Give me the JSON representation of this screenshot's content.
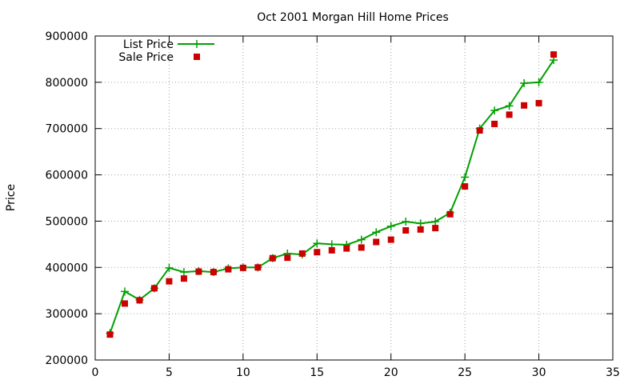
{
  "chart_data": {
    "type": "line",
    "title": "Oct 2001 Morgan Hill Home Prices",
    "xlabel": "",
    "ylabel": "Price",
    "xlim": [
      0,
      35
    ],
    "ylim": [
      200000,
      900000
    ],
    "xticks": [
      0,
      5,
      10,
      15,
      20,
      25,
      30,
      35
    ],
    "yticks": [
      200000,
      300000,
      400000,
      500000,
      600000,
      700000,
      800000,
      900000
    ],
    "grid": true,
    "legend_position": "top-left",
    "series": [
      {
        "name": "List Price",
        "style": "line+points",
        "marker": "plus",
        "color": "#00a000",
        "x": [
          1,
          2,
          3,
          4,
          5,
          6,
          7,
          8,
          9,
          10,
          11,
          12,
          13,
          14,
          15,
          16,
          17,
          18,
          19,
          20,
          21,
          22,
          23,
          24,
          25,
          26,
          27,
          28,
          29,
          30,
          31
        ],
        "y": [
          258000,
          348000,
          330000,
          355000,
          399000,
          390000,
          392000,
          390000,
          398000,
          400000,
          400000,
          420000,
          430000,
          428000,
          452000,
          450000,
          449000,
          460000,
          476000,
          489000,
          499000,
          495000,
          499000,
          518000,
          595000,
          700000,
          739000,
          749000,
          798000,
          800000,
          848000
        ]
      },
      {
        "name": "Sale Price",
        "style": "points",
        "marker": "square",
        "color": "#cc0000",
        "x": [
          1,
          2,
          3,
          4,
          5,
          6,
          7,
          8,
          9,
          10,
          11,
          12,
          13,
          14,
          15,
          16,
          17,
          18,
          19,
          20,
          21,
          22,
          23,
          24,
          25,
          26,
          27,
          28,
          29,
          30,
          31
        ],
        "y": [
          255000,
          322000,
          329000,
          355000,
          370000,
          376000,
          391000,
          390000,
          396000,
          399000,
          400000,
          420000,
          421000,
          430000,
          433000,
          437000,
          441000,
          443000,
          455000,
          460000,
          480000,
          482000,
          485000,
          515000,
          575000,
          696000,
          710000,
          730000,
          750000,
          755000,
          860000
        ]
      }
    ]
  }
}
